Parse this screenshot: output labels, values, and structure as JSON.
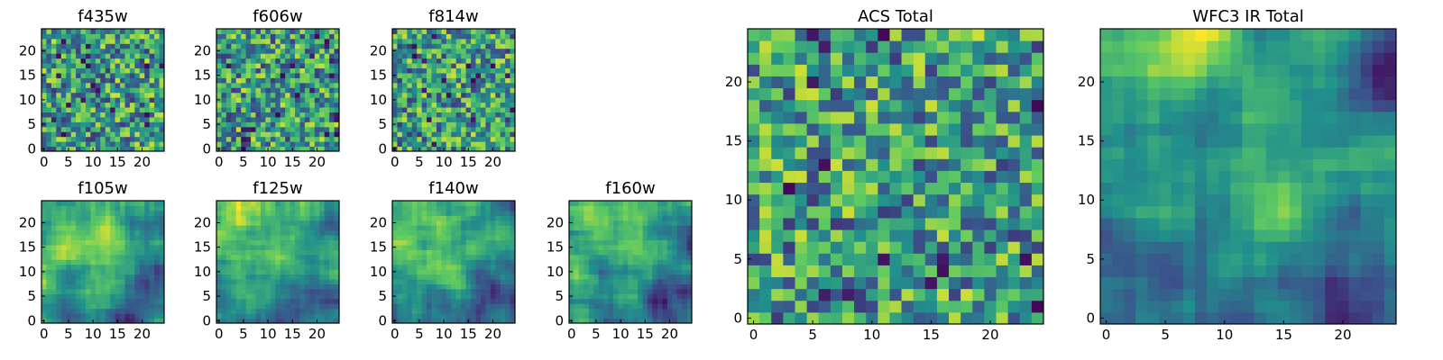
{
  "chart_data": {
    "type": "heatmap",
    "colormap": "viridis",
    "colors": {
      "low": "#440154",
      "mid_low": "#3b528b",
      "mid": "#21918c",
      "mid_high": "#5ec962",
      "high": "#fde725"
    },
    "grid_size": [
      25,
      25
    ],
    "panels": [
      {
        "title": "f435w",
        "xticks": [
          "0",
          "5",
          "10",
          "15",
          "20"
        ],
        "yticks": [
          "0",
          "5",
          "10",
          "15",
          "20"
        ],
        "xlim": [
          0,
          24
        ],
        "ylim": [
          0,
          24
        ],
        "pattern": "noise"
      },
      {
        "title": "f606w",
        "xticks": [
          "0",
          "5",
          "10",
          "15",
          "20"
        ],
        "yticks": [
          "0",
          "5",
          "10",
          "15",
          "20"
        ],
        "xlim": [
          0,
          24
        ],
        "ylim": [
          0,
          24
        ],
        "pattern": "noise"
      },
      {
        "title": "f814w",
        "xticks": [
          "0",
          "5",
          "10",
          "15",
          "20"
        ],
        "yticks": [
          "0",
          "5",
          "10",
          "15",
          "20"
        ],
        "xlim": [
          0,
          24
        ],
        "ylim": [
          0,
          24
        ],
        "pattern": "noise"
      },
      {
        "title": "f105w",
        "xticks": [
          "0",
          "5",
          "10",
          "15",
          "20"
        ],
        "yticks": [
          "0",
          "5",
          "10",
          "15",
          "20"
        ],
        "xlim": [
          0,
          24
        ],
        "ylim": [
          0,
          24
        ],
        "pattern": "smooth"
      },
      {
        "title": "f125w",
        "xticks": [
          "0",
          "5",
          "10",
          "15",
          "20"
        ],
        "yticks": [
          "0",
          "5",
          "10",
          "15",
          "20"
        ],
        "xlim": [
          0,
          24
        ],
        "ylim": [
          0,
          24
        ],
        "pattern": "smooth"
      },
      {
        "title": "f140w",
        "xticks": [
          "0",
          "5",
          "10",
          "15",
          "20"
        ],
        "yticks": [
          "0",
          "5",
          "10",
          "15",
          "20"
        ],
        "xlim": [
          0,
          24
        ],
        "ylim": [
          0,
          24
        ],
        "pattern": "smooth"
      },
      {
        "title": "f160w",
        "xticks": [
          "0",
          "5",
          "10",
          "15",
          "20"
        ],
        "yticks": [
          "0",
          "5",
          "10",
          "15",
          "20"
        ],
        "xlim": [
          0,
          24
        ],
        "ylim": [
          0,
          24
        ],
        "pattern": "smooth"
      },
      {
        "title": "ACS Total",
        "xticks": [
          "0",
          "5",
          "10",
          "15",
          "20"
        ],
        "yticks": [
          "0",
          "5",
          "10",
          "15",
          "20"
        ],
        "xlim": [
          0,
          24
        ],
        "ylim": [
          0,
          24
        ],
        "pattern": "noise"
      },
      {
        "title": "WFC3 IR Total",
        "xticks": [
          "0",
          "5",
          "10",
          "15",
          "20"
        ],
        "yticks": [
          "0",
          "5",
          "10",
          "15",
          "20"
        ],
        "xlim": [
          0,
          24
        ],
        "ylim": [
          0,
          24
        ],
        "pattern": "smooth"
      }
    ]
  }
}
